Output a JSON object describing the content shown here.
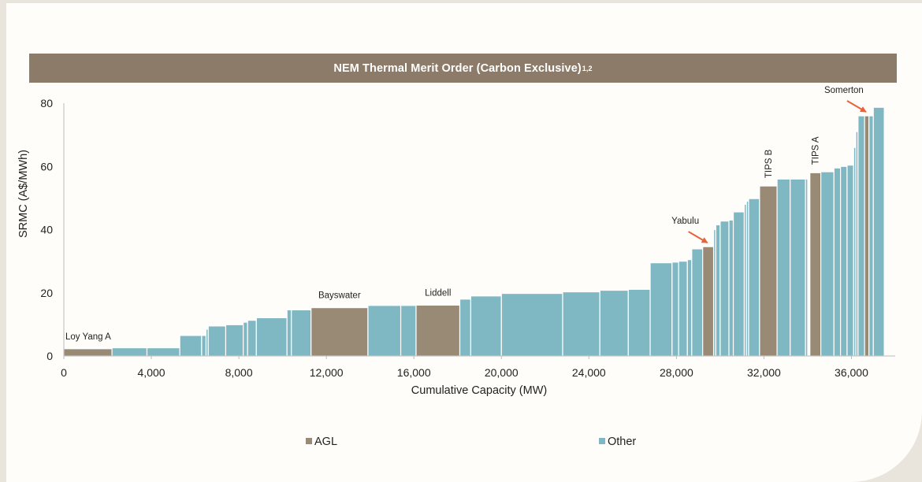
{
  "header": {
    "title": "NEM Thermal Merit Order (Carbon Exclusive)",
    "title_superscript": "1,2"
  },
  "chart_data": {
    "type": "bar",
    "subtype": "merit-order variable-width step bars",
    "title": "NEM Thermal Merit Order (Carbon Exclusive)",
    "xlabel": "Cumulative Capacity (MW)",
    "ylabel": "SRMC (A$/MWh)",
    "xlim": [
      0,
      38000
    ],
    "ylim": [
      0,
      80
    ],
    "x_ticks": [
      0,
      4000,
      8000,
      12000,
      16000,
      20000,
      24000,
      28000,
      32000,
      36000
    ],
    "x_tick_labels": [
      "0",
      "4,000",
      "8,000",
      "12,000",
      "16,000",
      "20,000",
      "24,000",
      "28,000",
      "32,000",
      "36,000"
    ],
    "y_ticks": [
      0,
      20,
      40,
      60,
      80
    ],
    "y_tick_labels": [
      "0",
      "20",
      "40",
      "60",
      "80"
    ],
    "grid": false,
    "legend_position": "bottom",
    "series": [
      {
        "name": "AGL",
        "color": "#998a75"
      },
      {
        "name": "Other",
        "color": "#7fb8c2"
      }
    ],
    "bars": [
      {
        "x0": 0,
        "x1": 2200,
        "y": 2.3,
        "series": "AGL",
        "label": "Loy Yang A"
      },
      {
        "x0": 2200,
        "x1": 3800,
        "y": 2.6,
        "series": "Other"
      },
      {
        "x0": 3800,
        "x1": 5300,
        "y": 2.6,
        "series": "Other"
      },
      {
        "x0": 5300,
        "x1": 6300,
        "y": 6.5,
        "series": "Other"
      },
      {
        "x0": 6300,
        "x1": 6500,
        "y": 6.5,
        "series": "Other"
      },
      {
        "x0": 6500,
        "x1": 6600,
        "y": 8.5,
        "series": "Other"
      },
      {
        "x0": 6600,
        "x1": 7400,
        "y": 9.5,
        "series": "Other"
      },
      {
        "x0": 7400,
        "x1": 8200,
        "y": 9.9,
        "series": "Other"
      },
      {
        "x0": 8200,
        "x1": 8400,
        "y": 10.7,
        "series": "Other"
      },
      {
        "x0": 8400,
        "x1": 8800,
        "y": 11.3,
        "series": "Other"
      },
      {
        "x0": 8800,
        "x1": 10200,
        "y": 12.1,
        "series": "Other"
      },
      {
        "x0": 10200,
        "x1": 10400,
        "y": 14.6,
        "series": "Other"
      },
      {
        "x0": 10400,
        "x1": 11300,
        "y": 14.6,
        "series": "Other"
      },
      {
        "x0": 11300,
        "x1": 13900,
        "y": 15.3,
        "series": "AGL",
        "label": "Bayswater"
      },
      {
        "x0": 13900,
        "x1": 15400,
        "y": 16.0,
        "series": "Other"
      },
      {
        "x0": 15400,
        "x1": 16100,
        "y": 16.0,
        "series": "Other"
      },
      {
        "x0": 16100,
        "x1": 18100,
        "y": 16.1,
        "series": "AGL",
        "label": "Liddell"
      },
      {
        "x0": 18100,
        "x1": 18600,
        "y": 18.0,
        "series": "Other"
      },
      {
        "x0": 18600,
        "x1": 20000,
        "y": 19.0,
        "series": "Other"
      },
      {
        "x0": 20000,
        "x1": 22800,
        "y": 19.8,
        "series": "Other"
      },
      {
        "x0": 22800,
        "x1": 24500,
        "y": 20.3,
        "series": "Other"
      },
      {
        "x0": 24500,
        "x1": 25800,
        "y": 20.8,
        "series": "Other"
      },
      {
        "x0": 25800,
        "x1": 26800,
        "y": 21.1,
        "series": "Other"
      },
      {
        "x0": 26800,
        "x1": 27800,
        "y": 29.5,
        "series": "Other"
      },
      {
        "x0": 27800,
        "x1": 28100,
        "y": 29.7,
        "series": "Other"
      },
      {
        "x0": 28100,
        "x1": 28500,
        "y": 30.0,
        "series": "Other"
      },
      {
        "x0": 28500,
        "x1": 28700,
        "y": 30.5,
        "series": "Other"
      },
      {
        "x0": 28700,
        "x1": 29200,
        "y": 33.9,
        "series": "Other"
      },
      {
        "x0": 29200,
        "x1": 29700,
        "y": 34.6,
        "series": "AGL",
        "label": "Yabulu"
      },
      {
        "x0": 29700,
        "x1": 29800,
        "y": 40.0,
        "series": "Other"
      },
      {
        "x0": 29800,
        "x1": 30000,
        "y": 41.5,
        "series": "Other"
      },
      {
        "x0": 30000,
        "x1": 30400,
        "y": 42.7,
        "series": "Other"
      },
      {
        "x0": 30400,
        "x1": 30600,
        "y": 43.0,
        "series": "Other"
      },
      {
        "x0": 30600,
        "x1": 31100,
        "y": 45.6,
        "series": "Other"
      },
      {
        "x0": 31100,
        "x1": 31200,
        "y": 48.0,
        "series": "Other"
      },
      {
        "x0": 31200,
        "x1": 31300,
        "y": 49.0,
        "series": "Other"
      },
      {
        "x0": 31300,
        "x1": 31800,
        "y": 49.8,
        "series": "Other"
      },
      {
        "x0": 31800,
        "x1": 32600,
        "y": 53.8,
        "series": "AGL",
        "label": "TIPS B"
      },
      {
        "x0": 32600,
        "x1": 33200,
        "y": 56.0,
        "series": "Other"
      },
      {
        "x0": 33200,
        "x1": 33900,
        "y": 56.0,
        "series": "Other"
      },
      {
        "x0": 33900,
        "x1": 34000,
        "y": 56.0,
        "series": "Other"
      },
      {
        "x0": 34100,
        "x1": 34600,
        "y": 58.0,
        "series": "AGL",
        "label": "TIPS A"
      },
      {
        "x0": 34600,
        "x1": 35200,
        "y": 58.3,
        "series": "Other"
      },
      {
        "x0": 35200,
        "x1": 35500,
        "y": 59.5,
        "series": "Other"
      },
      {
        "x0": 35500,
        "x1": 35800,
        "y": 60.0,
        "series": "Other"
      },
      {
        "x0": 35800,
        "x1": 36100,
        "y": 60.4,
        "series": "Other"
      },
      {
        "x0": 36100,
        "x1": 36200,
        "y": 66.0,
        "series": "Other"
      },
      {
        "x0": 36200,
        "x1": 36300,
        "y": 71.0,
        "series": "Other"
      },
      {
        "x0": 36300,
        "x1": 36600,
        "y": 76.0,
        "series": "Other"
      },
      {
        "x0": 36600,
        "x1": 36800,
        "y": 76.0,
        "series": "AGL",
        "label": "Somerton"
      },
      {
        "x0": 36800,
        "x1": 37000,
        "y": 76.0,
        "series": "Other"
      },
      {
        "x0": 37000,
        "x1": 37500,
        "y": 78.7,
        "series": "Other"
      }
    ],
    "annotations": [
      {
        "text": "Loy Yang A",
        "target": "Loy Yang A",
        "style": "above",
        "rotated": false
      },
      {
        "text": "Bayswater",
        "target": "Bayswater",
        "style": "above",
        "rotated": false
      },
      {
        "text": "Liddell",
        "target": "Liddell",
        "style": "above",
        "rotated": false
      },
      {
        "text": "Yabulu",
        "target": "Yabulu",
        "style": "arrow",
        "rotated": false
      },
      {
        "text": "TIPS B",
        "target": "TIPS B",
        "style": "vertical",
        "rotated": true
      },
      {
        "text": "TIPS A",
        "target": "TIPS A",
        "style": "vertical",
        "rotated": true
      },
      {
        "text": "Somerton",
        "target": "Somerton",
        "style": "arrow",
        "rotated": false
      }
    ],
    "arrow_color": "#e8623a"
  }
}
